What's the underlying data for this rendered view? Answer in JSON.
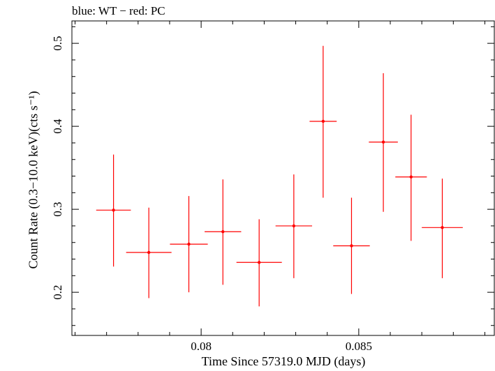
{
  "chart_data": {
    "type": "scatter",
    "title": "blue: WT − red: PC",
    "xlabel": "Time Since 57319.0 MJD (days)",
    "ylabel": "Count Rate (0.3−10.0 keV)(cts s⁻¹)",
    "xlim": [
      0.0759,
      0.0893
    ],
    "ylim": [
      0.148,
      0.527
    ],
    "x_major_ticks": [
      0.08,
      0.085
    ],
    "x_tick_labels": [
      "0.08",
      "0.085"
    ],
    "x_minor_step": 0.001,
    "y_major_ticks": [
      0.2,
      0.3,
      0.4,
      0.5
    ],
    "y_tick_labels": [
      "0.2",
      "0.3",
      "0.4",
      "0.5"
    ],
    "y_minor_step": 0.02,
    "grid": false,
    "series": [
      {
        "color": "#ff0000",
        "points": [
          {
            "x": 0.07722,
            "xerr": 0.00055,
            "y": 0.299,
            "ylow": 0.231,
            "yhigh": 0.366
          },
          {
            "x": 0.07834,
            "xerr": 0.00072,
            "y": 0.248,
            "ylow": 0.193,
            "yhigh": 0.302
          },
          {
            "x": 0.07961,
            "xerr": 0.0006,
            "y": 0.258,
            "ylow": 0.2,
            "yhigh": 0.316
          },
          {
            "x": 0.08069,
            "xerr": 0.00058,
            "y": 0.273,
            "ylow": 0.209,
            "yhigh": 0.336
          },
          {
            "x": 0.08184,
            "xerr": 0.00072,
            "y": 0.236,
            "ylow": 0.183,
            "yhigh": 0.288
          },
          {
            "x": 0.08294,
            "xerr": 0.00058,
            "y": 0.28,
            "ylow": 0.217,
            "yhigh": 0.342
          },
          {
            "x": 0.08387,
            "xerr": 0.00043,
            "y": 0.406,
            "ylow": 0.314,
            "yhigh": 0.497
          },
          {
            "x": 0.08477,
            "xerr": 0.00058,
            "y": 0.256,
            "ylow": 0.198,
            "yhigh": 0.314
          },
          {
            "x": 0.08578,
            "xerr": 0.00046,
            "y": 0.381,
            "ylow": 0.297,
            "yhigh": 0.464
          },
          {
            "x": 0.08666,
            "xerr": 0.0005,
            "y": 0.339,
            "ylow": 0.262,
            "yhigh": 0.414
          },
          {
            "x": 0.08765,
            "xerr": 0.00065,
            "y": 0.278,
            "ylow": 0.217,
            "yhigh": 0.337
          }
        ]
      }
    ]
  }
}
